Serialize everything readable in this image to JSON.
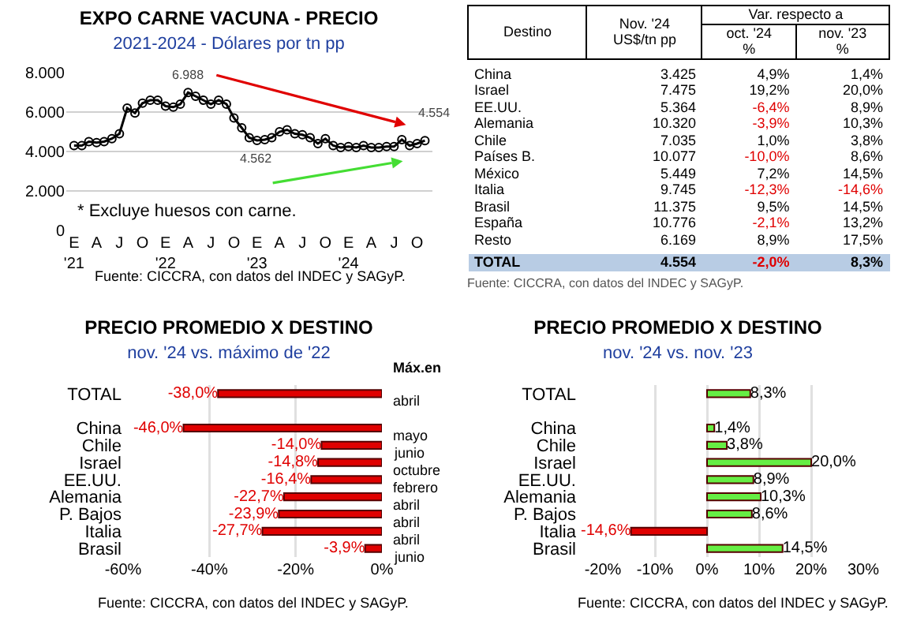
{
  "chart_data": [
    {
      "type": "line",
      "title": "EXPO CARNE VACUNA - PRECIO",
      "subtitle": "2021-2024 - Dólares por tn pp",
      "x": [
        "2021-01",
        "2021-02",
        "2021-03",
        "2021-04",
        "2021-05",
        "2021-06",
        "2021-07",
        "2021-08",
        "2021-09",
        "2021-10",
        "2021-11",
        "2021-12",
        "2022-01",
        "2022-02",
        "2022-03",
        "2022-04",
        "2022-05",
        "2022-06",
        "2022-07",
        "2022-08",
        "2022-09",
        "2022-10",
        "2022-11",
        "2022-12",
        "2023-01",
        "2023-02",
        "2023-03",
        "2023-04",
        "2023-05",
        "2023-06",
        "2023-07",
        "2023-08",
        "2023-09",
        "2023-10",
        "2023-11",
        "2023-12",
        "2024-01",
        "2024-02",
        "2024-03",
        "2024-04",
        "2024-05",
        "2024-06",
        "2024-07",
        "2024-08",
        "2024-09",
        "2024-10",
        "2024-11"
      ],
      "series": [
        {
          "color": "#000000",
          "values": [
            4300,
            4300,
            4500,
            4450,
            4500,
            4650,
            4900,
            6200,
            5950,
            6450,
            6600,
            6600,
            6300,
            6250,
            6400,
            6988,
            6800,
            6600,
            6400,
            6600,
            6400,
            5700,
            5200,
            4700,
            4562,
            4600,
            4700,
            5000,
            5100,
            4900,
            4850,
            4700,
            4400,
            4650,
            4300,
            4200,
            4250,
            4200,
            4300,
            4200,
            4200,
            4250,
            4250,
            4600,
            4300,
            4400,
            4554
          ]
        }
      ],
      "ylim": [
        0,
        8000
      ],
      "yticks": [
        0,
        {
          "value": 2000,
          "label": "2.000"
        },
        {
          "value": 4000,
          "label": "4.000"
        },
        {
          "value": 6000,
          "label": "6.000"
        },
        {
          "value": 8000,
          "label": "8.000"
        }
      ],
      "xlim": [
        "2020-12-01",
        "2024-12-01"
      ],
      "xticks": [
        {
          "value": "2021-01",
          "label": "E\n'21"
        },
        {
          "value": "2021-04",
          "label": "A"
        },
        {
          "value": "2021-07",
          "label": "J"
        },
        {
          "value": "2021-10",
          "label": "O"
        },
        {
          "value": "2022-01",
          "label": "E\n'22"
        },
        {
          "value": "2022-04",
          "label": "A"
        },
        {
          "value": "2022-07",
          "label": "J"
        },
        {
          "value": "2022-10",
          "label": "O"
        },
        {
          "value": "2023-01",
          "label": "E\n'23"
        },
        {
          "value": "2023-04",
          "label": "A"
        },
        {
          "value": "2023-07",
          "label": "J"
        },
        {
          "value": "2023-10",
          "label": "O"
        },
        {
          "value": "2024-01",
          "label": "E\n'24"
        },
        {
          "value": "2024-04",
          "label": "A"
        },
        {
          "value": "2024-07",
          "label": "J"
        },
        {
          "value": "2024-10",
          "label": "O"
        }
      ],
      "grid": "y",
      "marker": "circle",
      "line_style": "solid",
      "legend": false,
      "annotations": [
        {
          "text": "6.988",
          "x": "2022-04",
          "y": 6988
        },
        {
          "text": "4.562",
          "x": "2023-01",
          "y": 4562
        },
        {
          "text": "4.554",
          "x": "2024-11",
          "y": 4554
        },
        "* Excluye huesos con carne.",
        "Fuente: CICCRA, con datos del INDEC y SAGyP."
      ]
    },
    {
      "type": "heatmap",
      "ylabel": "Destino",
      "categories": [
        "Nov. '24\nUS$/tn pp",
        "oct. '24\n%",
        "nov. '23\n%"
      ],
      "y_categories": [
        "China",
        "Israel",
        "EE.UU.",
        "Alemania",
        "Chile",
        "Países B.",
        "México",
        "Italia",
        "Brasil",
        "España",
        "Resto",
        "TOTAL"
      ],
      "cells": [
        [
          3425,
          4.9,
          1.4
        ],
        [
          7475,
          19.2,
          20.0
        ],
        [
          5364,
          -6.4,
          8.9
        ],
        [
          10320,
          -3.9,
          10.3
        ],
        [
          7035,
          1.0,
          3.8
        ],
        [
          10077,
          -10.0,
          8.6
        ],
        [
          5449,
          7.2,
          14.5
        ],
        [
          9745,
          -12.3,
          -14.6
        ],
        [
          11375,
          9.5,
          14.5
        ],
        [
          10776,
          -2.1,
          13.2
        ],
        [
          6169,
          8.9,
          17.5
        ],
        [
          4554,
          -2.0,
          8.3
        ]
      ],
      "cell_labels": [
        [
          "3.425",
          "4,9%",
          "1,4%"
        ],
        [
          "7.475",
          "19,2%",
          "20,0%"
        ],
        [
          "5.364",
          "-6,4%",
          "8,9%"
        ],
        [
          "10.320",
          "-3,9%",
          "10,3%"
        ],
        [
          "7.035",
          "1,0%",
          "3,8%"
        ],
        [
          "10.077",
          "-10,0%",
          "8,6%"
        ],
        [
          "5.449",
          "7,2%",
          "14,5%"
        ],
        [
          "9.745",
          "-12,3%",
          "-14,6%"
        ],
        [
          "11.375",
          "9,5%",
          "14,5%"
        ],
        [
          "10.776",
          "-2,1%",
          "13,2%"
        ],
        [
          "6.169",
          "8,9%",
          "17,5%"
        ],
        [
          "4.554",
          "-2,0%",
          "8,3%"
        ]
      ],
      "annotations": [
        "Var. respecto a",
        "Fuente: CICCRA, con datos del INDEC y SAGyP."
      ]
    },
    {
      "type": "bar",
      "orientation": "horizontal",
      "title": "PRECIO PROMEDIO X DESTINO",
      "subtitle": "nov. '24 vs. máximo de '22",
      "categories": [
        "TOTAL",
        null,
        "China",
        "Chile",
        "Israel",
        "EE.UU.",
        "Alemania",
        "P. Bajos",
        "Italia",
        "Brasil"
      ],
      "series": [
        {
          "color": "#e00000",
          "values": [
            -38.0,
            null,
            -46.0,
            -14.0,
            -14.8,
            -16.4,
            -22.7,
            -23.9,
            -27.7,
            -3.9
          ],
          "value_labels": [
            "-38,0%",
            null,
            "-46,0%",
            "-14,0%",
            "-14,8%",
            "-16,4%",
            "-22,7%",
            "-23,9%",
            "-27,7%",
            "-3,9%"
          ]
        }
      ],
      "xlim": [
        -60,
        0
      ],
      "xticks": [
        {
          "value": -60,
          "label": "-60%"
        },
        {
          "value": -40,
          "label": "-40%"
        },
        {
          "value": -20,
          "label": "-20%"
        },
        {
          "value": 0,
          "label": "0%"
        }
      ],
      "grid": "x",
      "legend": false,
      "annotations": [
        "Máx.en",
        "abril",
        "mayo",
        "junio",
        "octubre",
        "febrero",
        "abril",
        "abril",
        "abril",
        "junio",
        "Fuente: CICCRA, con datos del INDEC y SAGyP."
      ]
    },
    {
      "type": "bar",
      "orientation": "horizontal",
      "title": "PRECIO PROMEDIO X DESTINO",
      "subtitle": "nov. '24 vs. nov. '23",
      "categories": [
        "TOTAL",
        null,
        "China",
        "Chile",
        "Israel",
        "EE.UU.",
        "Alemania",
        "P. Bajos",
        "Italia",
        "Brasil"
      ],
      "series": [
        {
          "colors": [
            "#66ee44",
            null,
            "#66ee44",
            "#66ee44",
            "#66ee44",
            "#66ee44",
            "#66ee44",
            "#66ee44",
            "#e00000",
            "#66ee44"
          ],
          "values": [
            8.3,
            null,
            1.4,
            3.8,
            20.0,
            8.9,
            10.3,
            8.6,
            -14.6,
            14.5
          ],
          "value_labels": [
            "8,3%",
            null,
            "1,4%",
            "3,8%",
            "20,0%",
            "8,9%",
            "10,3%",
            "8,6%",
            "-14,6%",
            "14,5%"
          ]
        }
      ],
      "xlim": [
        -20,
        30
      ],
      "xticks": [
        {
          "value": -20,
          "label": "-20%"
        },
        {
          "value": -10,
          "label": "-10%"
        },
        {
          "value": 0,
          "label": "0%"
        },
        {
          "value": 10,
          "label": "10%"
        },
        {
          "value": 20,
          "label": "20%"
        },
        {
          "value": 30,
          "label": "30%"
        }
      ],
      "grid": "x",
      "legend": false,
      "annotations": [
        "Fuente: CICCRA, con datos del INDEC y SAGyP."
      ]
    }
  ]
}
